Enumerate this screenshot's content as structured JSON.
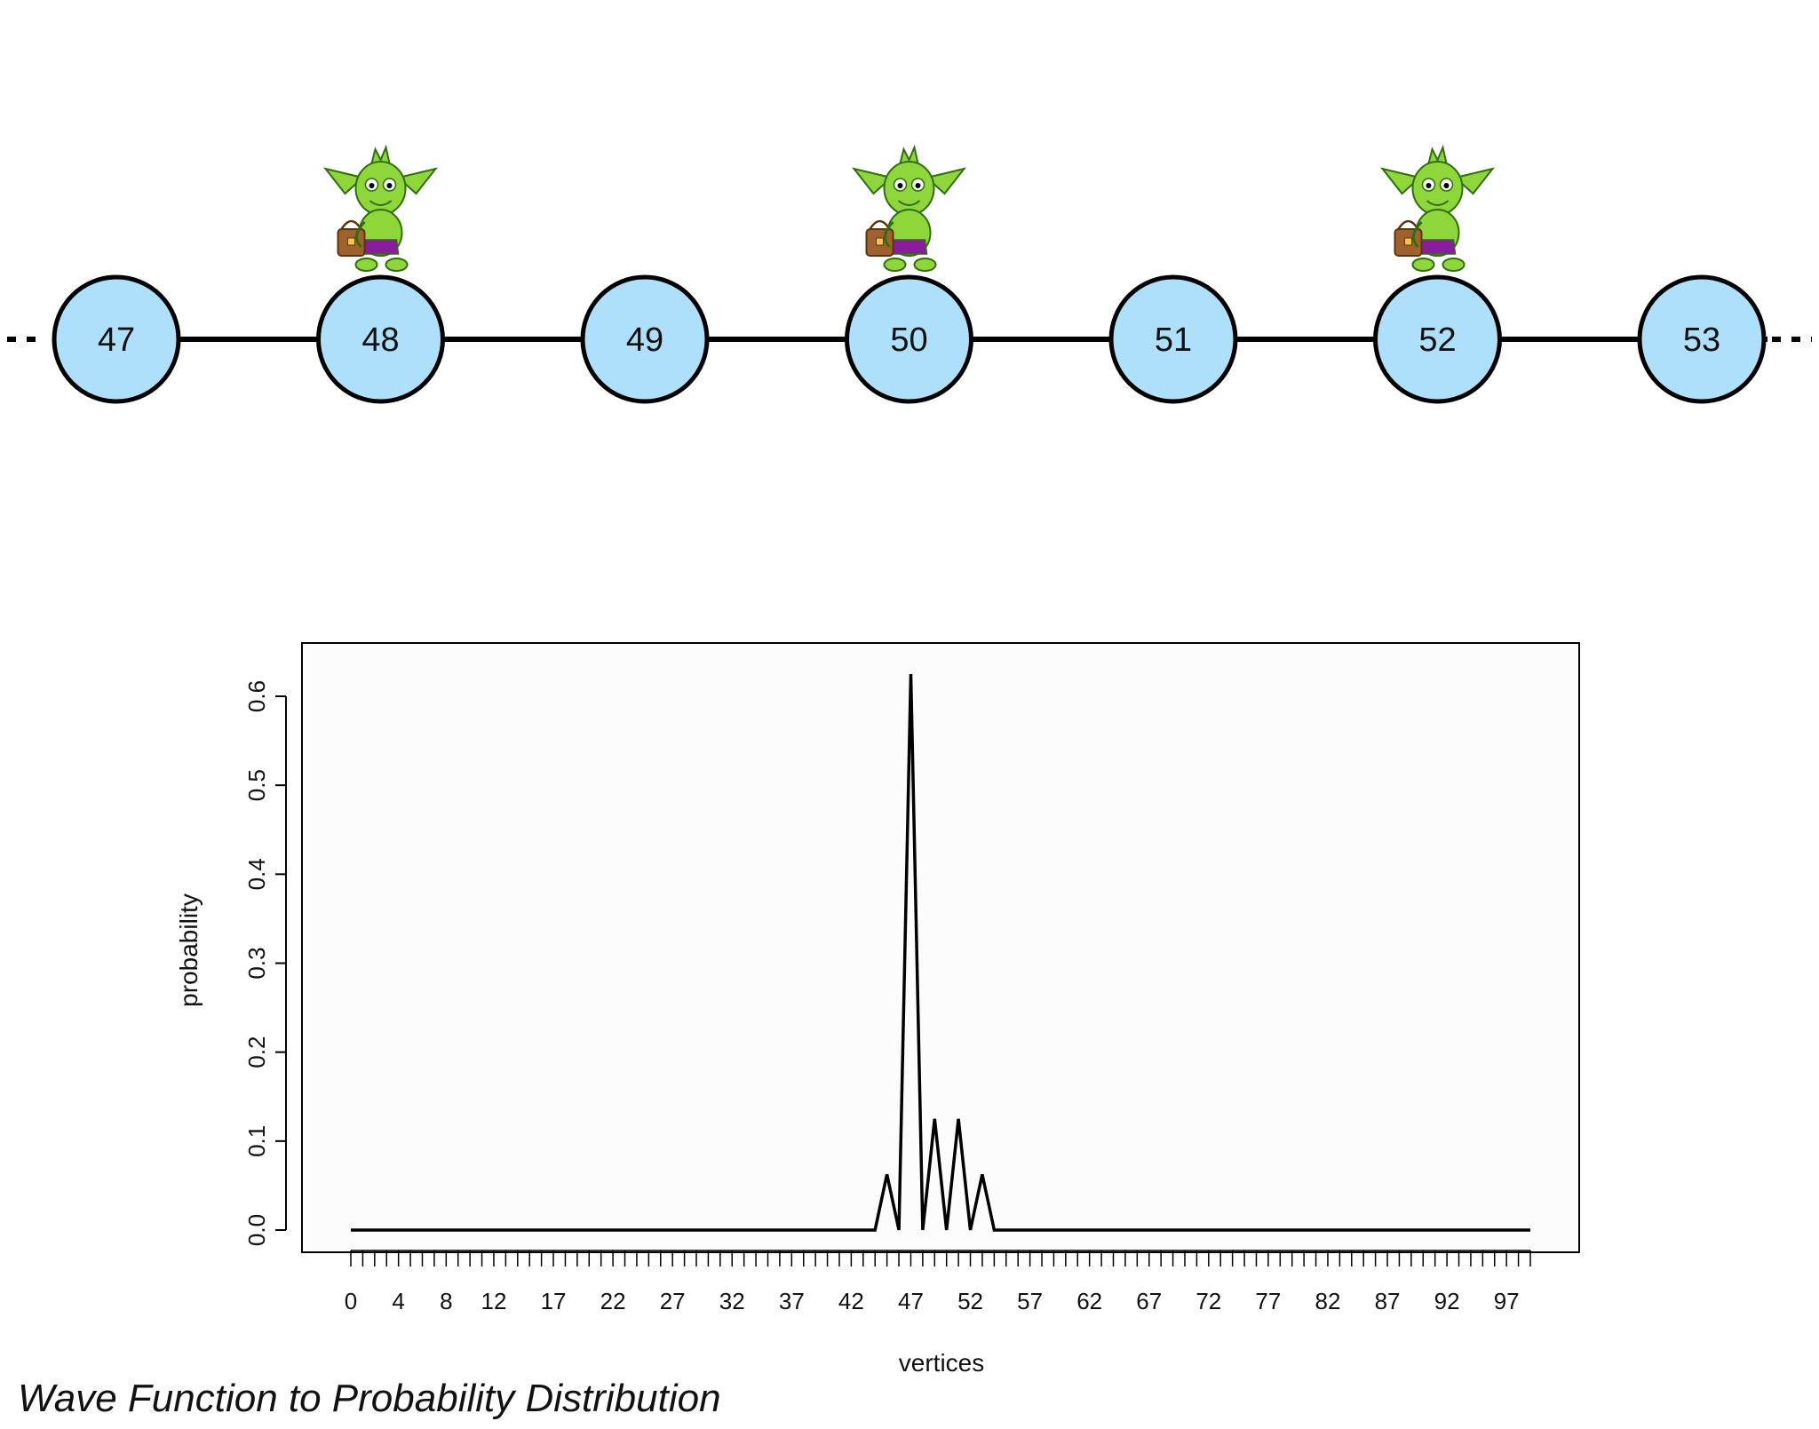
{
  "graph": {
    "node_labels": [
      "47",
      "48",
      "49",
      "50",
      "51",
      "52",
      "53"
    ],
    "goblin_nodes": [
      "48",
      "50",
      "52"
    ],
    "node_fill": "#aee0fb",
    "node_stroke": "#000000",
    "goblin_colors": {
      "skin": "#8fd63a",
      "outline": "#2f6e0e",
      "bag": "#a0622d",
      "shorts": "#8a1d9e"
    }
  },
  "chart_data": {
    "type": "line",
    "xlabel": "vertices",
    "ylabel": "probability",
    "x_tick_labels": [
      "0",
      "4",
      "8",
      "12",
      "17",
      "22",
      "27",
      "32",
      "37",
      "42",
      "47",
      "52",
      "57",
      "62",
      "67",
      "72",
      "77",
      "82",
      "87",
      "92",
      "97"
    ],
    "y_tick_labels": [
      "0.0",
      "0.1",
      "0.2",
      "0.3",
      "0.4",
      "0.5",
      "0.6"
    ],
    "ylim": [
      0,
      0.65
    ],
    "xlim": [
      0,
      99
    ],
    "series": [
      {
        "points": [
          [
            0,
            0
          ],
          [
            44,
            0
          ],
          [
            45,
            0.0625
          ],
          [
            46,
            0
          ],
          [
            47,
            0.625
          ],
          [
            48,
            0
          ],
          [
            49,
            0.125
          ],
          [
            50,
            0
          ],
          [
            51,
            0.125
          ],
          [
            52,
            0
          ],
          [
            53,
            0.0625
          ],
          [
            54,
            0
          ],
          [
            99,
            0
          ]
        ]
      }
    ],
    "grid": false,
    "line_color": "#000000"
  },
  "caption": "Wave Function to Probability Distribution"
}
